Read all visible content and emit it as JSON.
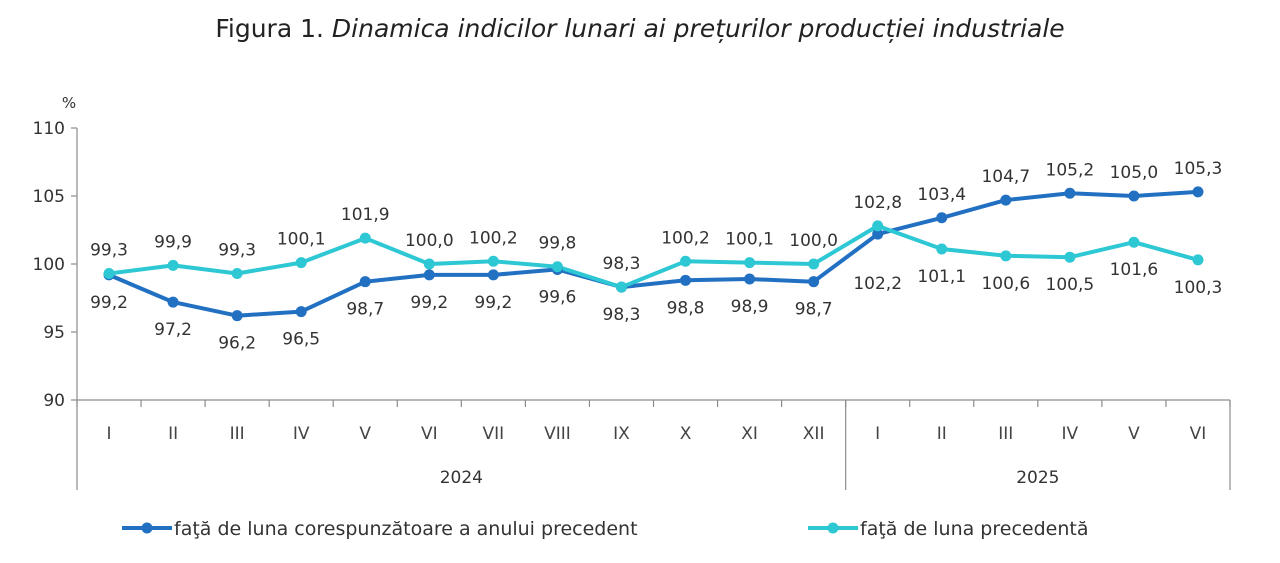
{
  "title": {
    "prefix": "Figura 1.",
    "italic": "Dinamica indicilor lunari ai prețurilor producției industriale"
  },
  "chart_data": {
    "type": "line",
    "unit": "%",
    "ylim": [
      90,
      110
    ],
    "yticks": [
      90,
      95,
      100,
      105,
      110
    ],
    "categories": [
      "I",
      "II",
      "III",
      "IV",
      "V",
      "VI",
      "VII",
      "VIII",
      "IX",
      "X",
      "XI",
      "XII",
      "I",
      "II",
      "III",
      "IV",
      "V",
      "VI"
    ],
    "year_groups": [
      {
        "label": "2024",
        "count": 12
      },
      {
        "label": "2025",
        "count": 6
      }
    ],
    "legend_position": "bottom",
    "grid": false,
    "series": [
      {
        "name": "faţă de luna corespunzătoare a anului precedent",
        "color": "#2270c2",
        "values": [
          99.2,
          97.2,
          96.2,
          96.5,
          98.7,
          99.2,
          99.2,
          99.6,
          98.3,
          98.8,
          98.9,
          98.7,
          102.2,
          103.4,
          104.7,
          105.2,
          105.0,
          105.3
        ],
        "labels": [
          "99,2",
          "97,2",
          "96,2",
          "96,5",
          "98,7",
          "99,2",
          "99,2",
          "99,6",
          "98,3",
          "98,8",
          "98,9",
          "98,7",
          "102,2",
          "103,4",
          "104,7",
          "105,2",
          "105,0",
          "105,3"
        ]
      },
      {
        "name": "faţă de luna precedentă",
        "color": "#2ec7d4",
        "values": [
          99.3,
          99.9,
          99.3,
          100.1,
          101.9,
          100.0,
          100.2,
          99.8,
          98.3,
          100.2,
          100.1,
          100.0,
          102.8,
          101.1,
          100.6,
          100.5,
          101.6,
          100.3
        ],
        "labels": [
          "99,3",
          "99,9",
          "99,3",
          "100,1",
          "101,9",
          "100,0",
          "100,2",
          "99,8",
          "98,3",
          "100,2",
          "100,1",
          "100,0",
          "102,8",
          "101,1",
          "100,6",
          "100,5",
          "101,6",
          "100,3"
        ]
      }
    ]
  }
}
